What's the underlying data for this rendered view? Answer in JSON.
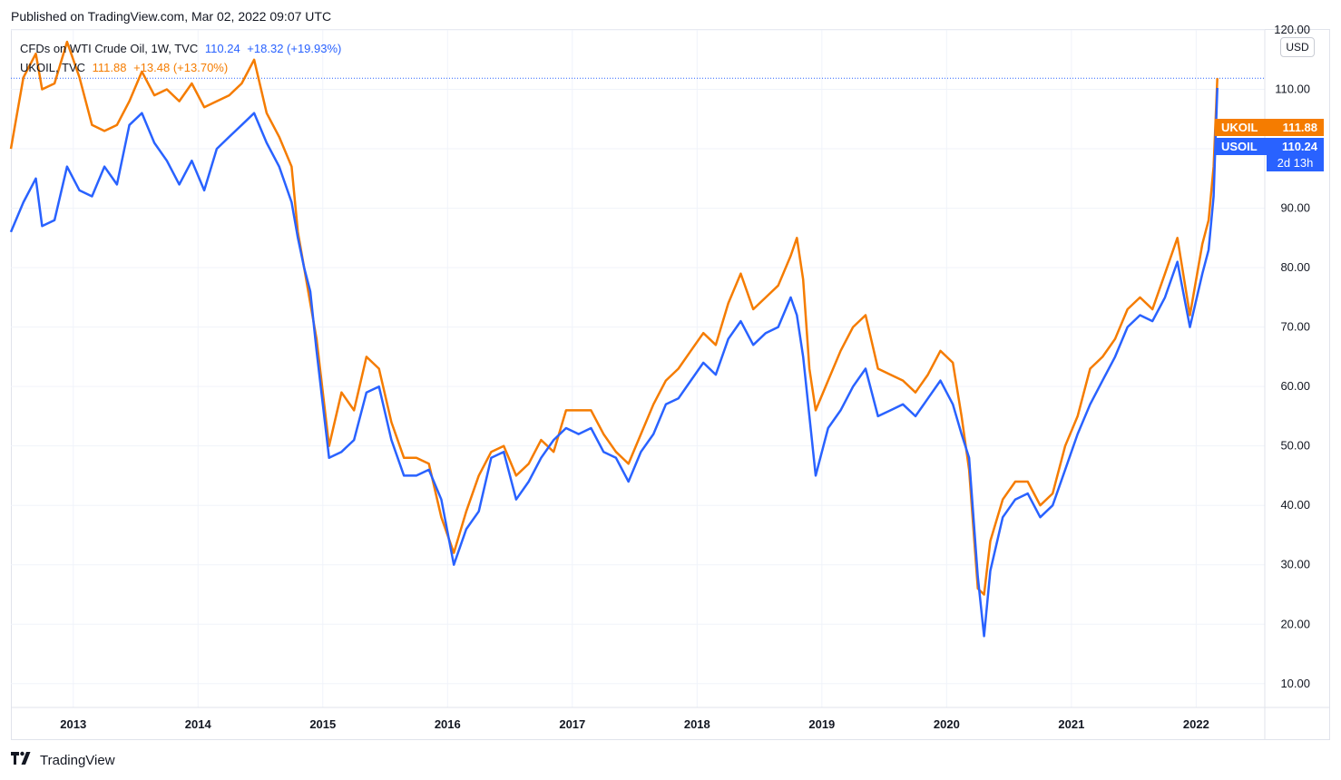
{
  "header": {
    "published": "Published on TradingView.com, Mar 02, 2022 09:07 UTC"
  },
  "legend": {
    "series1": {
      "symbol": "CFDs on WTI Crude Oil, 1W, TVC",
      "price": "110.24",
      "change": "+18.32 (+19.93%)",
      "color": "#2962ff"
    },
    "series2": {
      "symbol": "UKOIL, TVC",
      "price": "111.88",
      "change": "+13.48 (+13.70%)",
      "color": "#f57c00"
    }
  },
  "axis": {
    "currency": "USD"
  },
  "price_labels": {
    "ukoil": {
      "name": "UKOIL",
      "value": "111.88",
      "color": "#f57c00"
    },
    "usoil": {
      "name": "USOIL",
      "value": "110.24",
      "countdown": "2d 13h",
      "color": "#2962ff"
    }
  },
  "footer": {
    "brand": "TradingView"
  },
  "chart_data": {
    "type": "line",
    "title": "CFDs on WTI Crude Oil vs UKOIL (weekly)",
    "xlabel": "",
    "ylabel": "USD",
    "ylim": [
      6,
      120
    ],
    "xlim": [
      2012.5,
      2022.55
    ],
    "grid": true,
    "y_ticks": [
      "10.00",
      "20.00",
      "30.00",
      "40.00",
      "50.00",
      "60.00",
      "70.00",
      "80.00",
      "90.00",
      "100.00",
      "110.00",
      "120.00"
    ],
    "x_ticks": [
      "2013",
      "2014",
      "2015",
      "2016",
      "2017",
      "2018",
      "2019",
      "2020",
      "2021",
      "2022"
    ],
    "last_price_line": 111.88,
    "series": [
      {
        "name": "USOIL",
        "color": "#2962ff",
        "x": [
          2012.5,
          2012.6,
          2012.7,
          2012.75,
          2012.85,
          2012.95,
          2013.05,
          2013.15,
          2013.25,
          2013.35,
          2013.45,
          2013.55,
          2013.65,
          2013.75,
          2013.85,
          2013.95,
          2014.05,
          2014.15,
          2014.25,
          2014.35,
          2014.45,
          2014.55,
          2014.65,
          2014.75,
          2014.8,
          2014.85,
          2014.9,
          2014.95,
          2015.05,
          2015.15,
          2015.25,
          2015.35,
          2015.45,
          2015.55,
          2015.65,
          2015.75,
          2015.85,
          2015.95,
          2016.05,
          2016.15,
          2016.25,
          2016.35,
          2016.45,
          2016.55,
          2016.65,
          2016.75,
          2016.85,
          2016.95,
          2017.05,
          2017.15,
          2017.25,
          2017.35,
          2017.45,
          2017.55,
          2017.65,
          2017.75,
          2017.85,
          2017.95,
          2018.05,
          2018.15,
          2018.25,
          2018.35,
          2018.45,
          2018.55,
          2018.65,
          2018.75,
          2018.8,
          2018.85,
          2018.9,
          2018.95,
          2019.05,
          2019.15,
          2019.25,
          2019.35,
          2019.45,
          2019.55,
          2019.65,
          2019.75,
          2019.85,
          2019.95,
          2020.05,
          2020.12,
          2020.18,
          2020.25,
          2020.3,
          2020.35,
          2020.45,
          2020.55,
          2020.65,
          2020.75,
          2020.85,
          2020.95,
          2021.05,
          2021.15,
          2021.25,
          2021.35,
          2021.45,
          2021.55,
          2021.65,
          2021.75,
          2021.85,
          2021.95,
          2022.05,
          2022.1,
          2022.14,
          2022.17
        ],
        "values": [
          86,
          91,
          95,
          87,
          88,
          97,
          93,
          92,
          97,
          94,
          104,
          106,
          101,
          98,
          94,
          98,
          93,
          100,
          102,
          104,
          106,
          101,
          97,
          91,
          85,
          80,
          76,
          66,
          48,
          49,
          51,
          59,
          60,
          51,
          45,
          45,
          46,
          41,
          30,
          36,
          39,
          48,
          49,
          41,
          44,
          48,
          51,
          53,
          52,
          53,
          49,
          48,
          44,
          49,
          52,
          57,
          58,
          61,
          64,
          62,
          68,
          71,
          67,
          69,
          70,
          75,
          72,
          65,
          55,
          45,
          53,
          56,
          60,
          63,
          55,
          56,
          57,
          55,
          58,
          61,
          57,
          52,
          48,
          28,
          18,
          29,
          38,
          41,
          42,
          38,
          40,
          46,
          52,
          57,
          61,
          65,
          70,
          72,
          71,
          75,
          81,
          70,
          79,
          83,
          92,
          110.24
        ]
      },
      {
        "name": "UKOIL",
        "color": "#f57c00",
        "x": [
          2012.5,
          2012.6,
          2012.7,
          2012.75,
          2012.85,
          2012.95,
          2013.05,
          2013.15,
          2013.25,
          2013.35,
          2013.45,
          2013.55,
          2013.65,
          2013.75,
          2013.85,
          2013.95,
          2014.05,
          2014.15,
          2014.25,
          2014.35,
          2014.45,
          2014.55,
          2014.65,
          2014.75,
          2014.8,
          2014.85,
          2014.9,
          2014.95,
          2015.05,
          2015.15,
          2015.25,
          2015.35,
          2015.45,
          2015.55,
          2015.65,
          2015.75,
          2015.85,
          2015.95,
          2016.05,
          2016.15,
          2016.25,
          2016.35,
          2016.45,
          2016.55,
          2016.65,
          2016.75,
          2016.85,
          2016.95,
          2017.05,
          2017.15,
          2017.25,
          2017.35,
          2017.45,
          2017.55,
          2017.65,
          2017.75,
          2017.85,
          2017.95,
          2018.05,
          2018.15,
          2018.25,
          2018.35,
          2018.45,
          2018.55,
          2018.65,
          2018.75,
          2018.8,
          2018.85,
          2018.9,
          2018.95,
          2019.05,
          2019.15,
          2019.25,
          2019.35,
          2019.45,
          2019.55,
          2019.65,
          2019.75,
          2019.85,
          2019.95,
          2020.05,
          2020.12,
          2020.18,
          2020.25,
          2020.3,
          2020.35,
          2020.45,
          2020.55,
          2020.65,
          2020.75,
          2020.85,
          2020.95,
          2021.05,
          2021.15,
          2021.25,
          2021.35,
          2021.45,
          2021.55,
          2021.65,
          2021.75,
          2021.85,
          2021.95,
          2022.05,
          2022.1,
          2022.14,
          2022.17
        ],
        "values": [
          100,
          112,
          116,
          110,
          111,
          118,
          112,
          104,
          103,
          104,
          108,
          113,
          109,
          110,
          108,
          111,
          107,
          108,
          109,
          111,
          115,
          106,
          102,
          97,
          86,
          80,
          74,
          68,
          50,
          59,
          56,
          65,
          63,
          54,
          48,
          48,
          47,
          38,
          32,
          39,
          45,
          49,
          50,
          45,
          47,
          51,
          49,
          56,
          56,
          56,
          52,
          49,
          47,
          52,
          57,
          61,
          63,
          66,
          69,
          67,
          74,
          79,
          73,
          75,
          77,
          82,
          85,
          78,
          63,
          56,
          61,
          66,
          70,
          72,
          63,
          62,
          61,
          59,
          62,
          66,
          64,
          55,
          46,
          26,
          25,
          34,
          41,
          44,
          44,
          40,
          42,
          50,
          55,
          63,
          65,
          68,
          73,
          75,
          73,
          79,
          85,
          72,
          84,
          88,
          97,
          111.88
        ]
      }
    ]
  }
}
